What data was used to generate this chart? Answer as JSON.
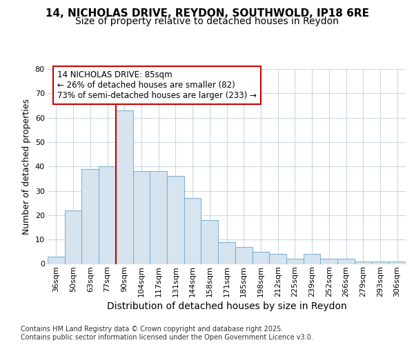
{
  "title_line1": "14, NICHOLAS DRIVE, REYDON, SOUTHWOLD, IP18 6RE",
  "title_line2": "Size of property relative to detached houses in Reydon",
  "xlabel": "Distribution of detached houses by size in Reydon",
  "ylabel": "Number of detached properties",
  "categories": [
    "36sqm",
    "50sqm",
    "63sqm",
    "77sqm",
    "90sqm",
    "104sqm",
    "117sqm",
    "131sqm",
    "144sqm",
    "158sqm",
    "171sqm",
    "185sqm",
    "198sqm",
    "212sqm",
    "225sqm",
    "239sqm",
    "252sqm",
    "266sqm",
    "279sqm",
    "293sqm",
    "306sqm"
  ],
  "hist_values": [
    3,
    22,
    39,
    40,
    63,
    38,
    38,
    36,
    27,
    18,
    9,
    7,
    5,
    4,
    2,
    4,
    2,
    2,
    1,
    1,
    1
  ],
  "bar_color": "#d6e4f0",
  "bar_edge_color": "#7fb3d3",
  "vline_color": "#cc0000",
  "vline_pos": 3.5,
  "annotation_text": "14 NICHOLAS DRIVE: 85sqm\n← 26% of detached houses are smaller (82)\n73% of semi-detached houses are larger (233) →",
  "annotation_box_color": "#ffffff",
  "annotation_box_edge": "#cc0000",
  "ylim_max": 80,
  "yticks": [
    0,
    10,
    20,
    30,
    40,
    50,
    60,
    70,
    80
  ],
  "grid_color": "#c8d8e8",
  "footer": "Contains HM Land Registry data © Crown copyright and database right 2025.\nContains public sector information licensed under the Open Government Licence v3.0.",
  "bg_color": "#ffffff",
  "plot_bg_color": "#ffffff",
  "title_fontsize": 11,
  "subtitle_fontsize": 10,
  "ylabel_fontsize": 9,
  "xlabel_fontsize": 10,
  "tick_fontsize": 8,
  "footer_fontsize": 7,
  "ann_fontsize": 8.5
}
